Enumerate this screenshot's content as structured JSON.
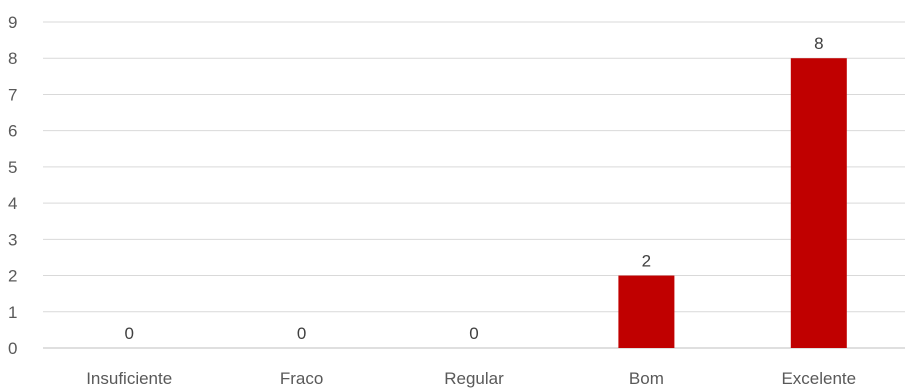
{
  "chart_data": {
    "type": "bar",
    "title": "",
    "xlabel": "",
    "ylabel": "",
    "categories": [
      "Insuficiente",
      "Fraco",
      "Regular",
      "Bom",
      "Excelente"
    ],
    "values": [
      0,
      0,
      0,
      2,
      8
    ],
    "ylim": [
      0,
      9
    ],
    "yticks": [
      0,
      1,
      2,
      3,
      4,
      5,
      6,
      7,
      8,
      9
    ],
    "grid": true,
    "legend": "none",
    "data_labels": true,
    "colors": {
      "bar": "#c00000",
      "gridline": "#d9d9d9",
      "tick_text": "#595959",
      "label_text": "#404040"
    }
  }
}
